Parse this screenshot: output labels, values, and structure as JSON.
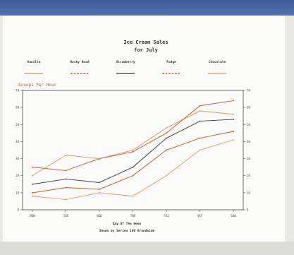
{
  "chart_data": {
    "type": "line",
    "title": "Ice Cream Sales",
    "subtitle": "for July",
    "ylabel": "Scoops Per Hour",
    "xlabel": "Day Of The Week",
    "footnote": "Shown by Series 100 Brandwide",
    "categories": [
      "MON",
      "TUE",
      "WED",
      "THU",
      "FRI",
      "SAT",
      "SUN"
    ],
    "ylim": [
      0,
      70
    ],
    "yticks": [
      0,
      10,
      20,
      30,
      40,
      50,
      60,
      70
    ],
    "series": [
      {
        "name": "Vanilla",
        "color": "#e8a070",
        "values": [
          20,
          32,
          30,
          35,
          48,
          58,
          56
        ]
      },
      {
        "name": "Rocky Road",
        "color": "#d06a4a",
        "values": [
          25,
          23,
          30,
          34,
          45,
          61,
          64
        ]
      },
      {
        "name": "Strawberry",
        "color": "#555555",
        "values": [
          15,
          18,
          16,
          25,
          42,
          52,
          53
        ]
      },
      {
        "name": "Fudge",
        "color": "#cc6a3a",
        "values": [
          10,
          13,
          12,
          20,
          35,
          42,
          46
        ]
      },
      {
        "name": "Chocolate",
        "color": "#f0a080",
        "values": [
          8,
          6,
          10,
          8,
          20,
          35,
          41
        ]
      }
    ]
  }
}
